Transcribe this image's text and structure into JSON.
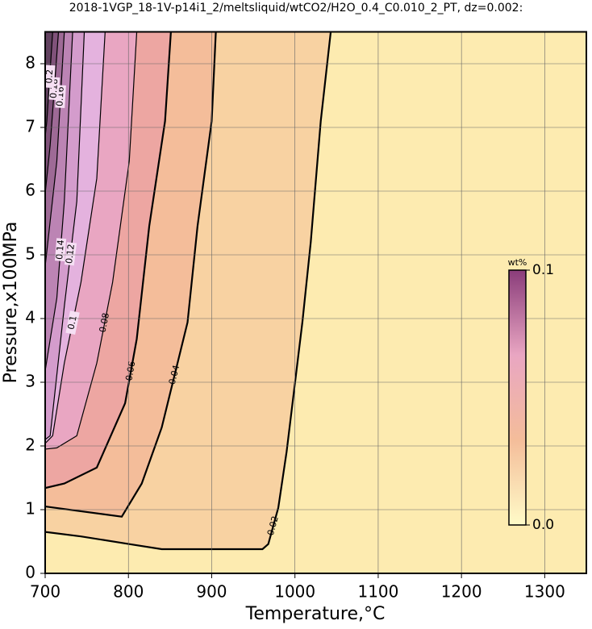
{
  "chart_data": {
    "type": "contour",
    "title": "2018-1VGP_18-1V-p14i1_2/meltsliquid/wtCO2/H2O_0.4_C0.010_2_PT, dz=0.002:",
    "xlabel": "Temperature,°C",
    "ylabel": "Pressure,x100MPa",
    "xlim": [
      700,
      1350
    ],
    "ylim": [
      0,
      8.5
    ],
    "xticks": [
      700,
      800,
      900,
      1000,
      1100,
      1200,
      1300
    ],
    "yticks": [
      0,
      1,
      2,
      3,
      4,
      5,
      6,
      7,
      8
    ],
    "grid": true,
    "background": "#fdebb0",
    "contours": [
      {
        "level": 0.02,
        "color": "#f8d2a2",
        "x": [
          1043,
          1031,
          1019,
          1009,
          990,
          980,
          968,
          961,
          840,
          801,
          743,
          700
        ],
        "y": [
          8.5,
          7.1,
          5.2,
          3.95,
          1.91,
          1.03,
          0.46,
          0.38,
          0.38,
          0.46,
          0.58,
          0.65
        ]
      },
      {
        "level": 0.04,
        "color": "#f4bd9a",
        "x": [
          905,
          900,
          883,
          871,
          840,
          816,
          792,
          700
        ],
        "y": [
          8.5,
          7.1,
          5.45,
          3.94,
          2.29,
          1.41,
          0.89,
          1.05
        ]
      },
      {
        "level": 0.06,
        "color": "#eda6a2",
        "x": [
          851,
          844,
          825,
          810,
          796,
          762,
          723,
          700
        ],
        "y": [
          8.5,
          7.1,
          5.45,
          3.68,
          2.67,
          1.66,
          1.41,
          1.34
        ]
      },
      {
        "level": 0.08,
        "color": "#e9a6c2",
        "x": [
          810,
          801,
          781,
          762,
          738,
          714,
          700
        ],
        "y": [
          8.5,
          6.47,
          4.57,
          3.3,
          2.16,
          1.97,
          1.95
        ]
      },
      {
        "level": 0.1,
        "color": "#e4b2de",
        "x": [
          772,
          762,
          743,
          723,
          709,
          700
        ],
        "y": [
          8.5,
          6.2,
          4.57,
          3.3,
          2.16,
          2.04
        ]
      },
      {
        "level": 0.12,
        "color": "#d49ccc",
        "x": [
          747,
          738,
          723,
          706,
          700
        ],
        "y": [
          8.5,
          5.84,
          4.19,
          2.16,
          2.1
        ]
      },
      {
        "level": 0.14,
        "color": "#bc84b4",
        "x": [
          733,
          723,
          714,
          700
        ],
        "y": [
          8.5,
          5.84,
          4.32,
          3.18
        ]
      },
      {
        "level": 0.16,
        "color": "#9e6a96",
        "x": [
          723,
          714,
          700
        ],
        "y": [
          8.5,
          6.47,
          4.82
        ]
      },
      {
        "level": 0.18,
        "color": "#80527a",
        "x": [
          716,
          706,
          700
        ],
        "y": [
          8.5,
          6.72,
          5.96
        ]
      },
      {
        "level": 0.2,
        "color": "#624260",
        "x": [
          709,
          702,
          700
        ],
        "y": [
          8.5,
          7.1,
          6.85
        ]
      }
    ],
    "colorbar": {
      "label": "wt%",
      "lim": [
        0,
        0.1
      ],
      "ticks": [
        {
          "value": 0,
          "label": "0.0"
        },
        0.1
      ],
      "colors": [
        "#fffbc8",
        "#f4bd9a",
        "#e9a6c2",
        "#8a3c7a"
      ]
    }
  }
}
